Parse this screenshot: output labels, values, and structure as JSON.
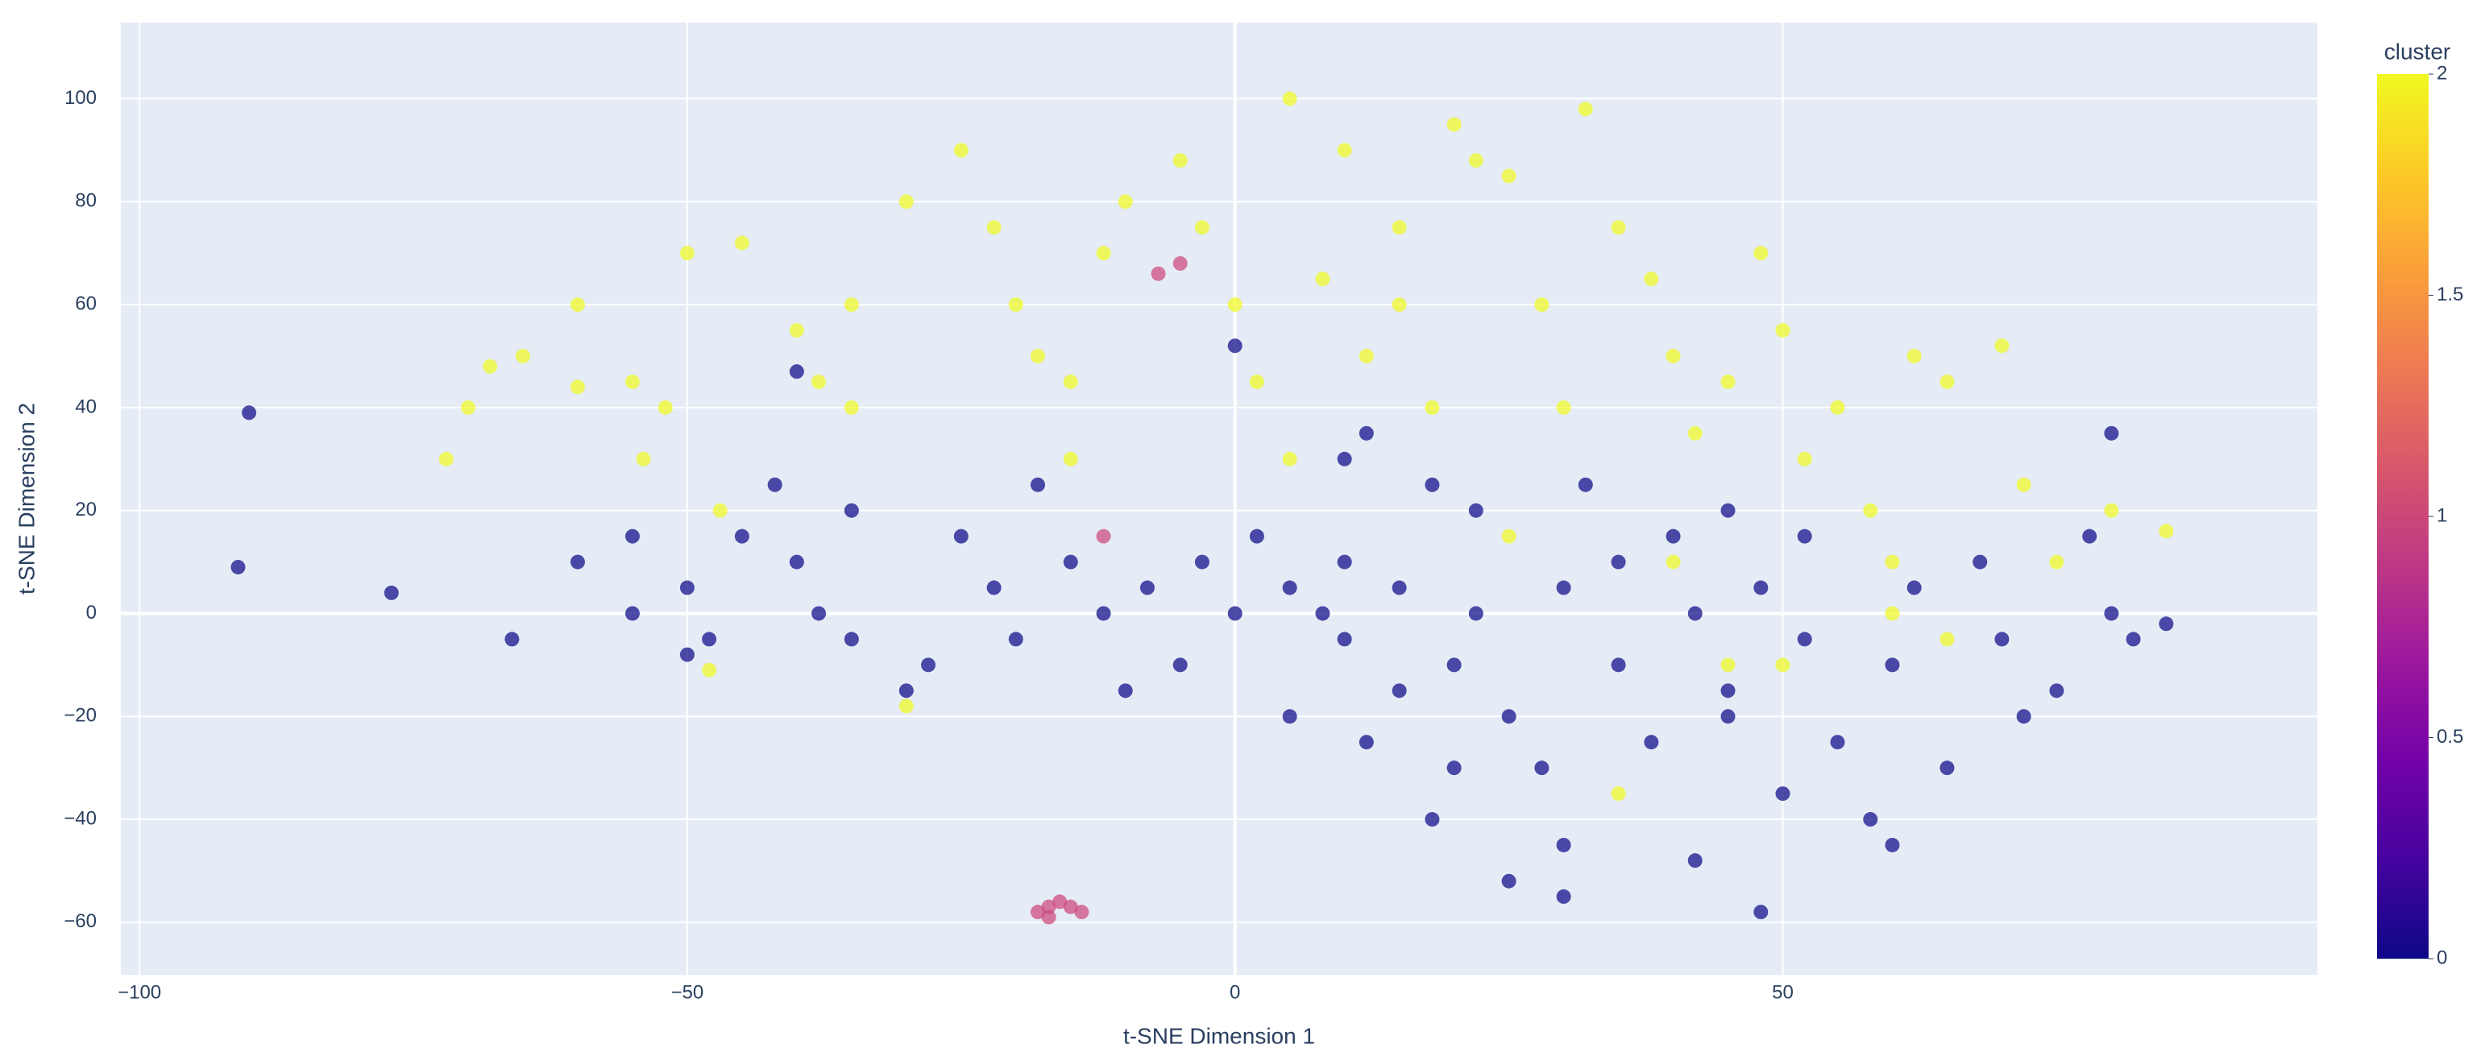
{
  "chart_data": {
    "type": "scatter",
    "x_label": "t-SNE Dimension 1",
    "y_label": "t-SNE Dimension 2",
    "xlim": [
      -101.7,
      98.8
    ],
    "ylim": [
      -70.2,
      114.8
    ],
    "xticks": [
      {
        "value": -100,
        "label": "−100"
      },
      {
        "value": -50,
        "label": "−50"
      },
      0,
      50
    ],
    "yticks": [
      {
        "value": -60,
        "label": "−60"
      },
      {
        "value": -40,
        "label": "−40"
      },
      {
        "value": -20,
        "label": "−20"
      },
      0,
      20,
      40,
      60,
      80,
      100
    ],
    "grid": true,
    "colorbar": {
      "title": "cluster",
      "lim": [
        0,
        2
      ],
      "ticks": [
        0,
        0.5,
        1,
        1.5,
        2
      ],
      "colorscale": [
        "#0d0887",
        "#46039f",
        "#7201a8",
        "#9c179e",
        "#bd3786",
        "#d8576b",
        "#ed7953",
        "#fb9f3a",
        "#fdca26",
        "#f0f921"
      ]
    },
    "series": [
      {
        "color": "#f0f921",
        "x": [
          -68,
          -70,
          -72,
          -65,
          -60,
          -55,
          -52,
          -50,
          -45,
          -40,
          -38,
          -35,
          -30,
          -25,
          -22,
          -20,
          -18,
          -15,
          -12,
          -10,
          -5,
          -3,
          0,
          2,
          5,
          8,
          10,
          12,
          15,
          18,
          20,
          22,
          25,
          28,
          30,
          32,
          35,
          38,
          40,
          42,
          45,
          48,
          50,
          52,
          55,
          58,
          60,
          62,
          65,
          70,
          72,
          75,
          80,
          85,
          65,
          60,
          45,
          40,
          -30,
          -48,
          -47,
          -60,
          -54,
          5,
          -15,
          25,
          35,
          50,
          15,
          -35
        ],
        "values": [
          48,
          40,
          30,
          50,
          44,
          45,
          40,
          70,
          72,
          55,
          45,
          40,
          80,
          90,
          75,
          60,
          50,
          45,
          70,
          80,
          88,
          75,
          60,
          45,
          30,
          65,
          90,
          50,
          75,
          40,
          95,
          88,
          85,
          60,
          40,
          98,
          75,
          65,
          50,
          35,
          45,
          70,
          55,
          30,
          40,
          20,
          10,
          50,
          45,
          52,
          25,
          10,
          20,
          16,
          -5,
          0,
          -10,
          10,
          -18,
          -11,
          20,
          60,
          30,
          100,
          30,
          15,
          -35,
          -10,
          60,
          60
        ]
      },
      {
        "color": "#0d0887",
        "x": [
          -90,
          -91,
          -77,
          -66,
          -60,
          -55,
          -55,
          -50,
          -48,
          -45,
          -42,
          -40,
          -38,
          -35,
          -35,
          -30,
          -28,
          -25,
          -22,
          -20,
          -18,
          -15,
          -12,
          -10,
          -8,
          -5,
          -3,
          0,
          2,
          5,
          5,
          8,
          10,
          10,
          12,
          12,
          15,
          15,
          18,
          18,
          20,
          22,
          22,
          25,
          25,
          28,
          30,
          30,
          32,
          35,
          35,
          38,
          40,
          42,
          42,
          45,
          45,
          48,
          48,
          50,
          52,
          52,
          55,
          58,
          60,
          62,
          65,
          68,
          70,
          72,
          75,
          78,
          80,
          82,
          85,
          80,
          45,
          -40,
          0,
          10,
          -50,
          30,
          60,
          20
        ],
        "values": [
          39,
          9,
          4,
          -5,
          10,
          15,
          0,
          5,
          -5,
          15,
          25,
          10,
          0,
          -5,
          20,
          -15,
          -10,
          15,
          5,
          -5,
          25,
          10,
          0,
          -15,
          5,
          -10,
          10,
          0,
          15,
          5,
          -20,
          0,
          10,
          -5,
          -25,
          35,
          5,
          -15,
          25,
          -40,
          -10,
          0,
          20,
          -20,
          -52,
          -30,
          5,
          -55,
          25,
          -10,
          10,
          -25,
          15,
          0,
          -48,
          -15,
          20,
          5,
          -58,
          -35,
          -5,
          15,
          -25,
          -40,
          -10,
          5,
          -30,
          10,
          -5,
          -20,
          -15,
          15,
          0,
          -5,
          -2,
          35,
          -20,
          47,
          52,
          30,
          -8,
          -45,
          -45,
          -30
        ]
      },
      {
        "color": "#cc4778",
        "x": [
          -17,
          -18,
          -16,
          -15,
          -17,
          -14,
          -7,
          -5,
          -12
        ],
        "values": [
          -57,
          -58,
          -56,
          -57,
          -59,
          -58,
          66,
          68,
          15
        ]
      }
    ]
  }
}
